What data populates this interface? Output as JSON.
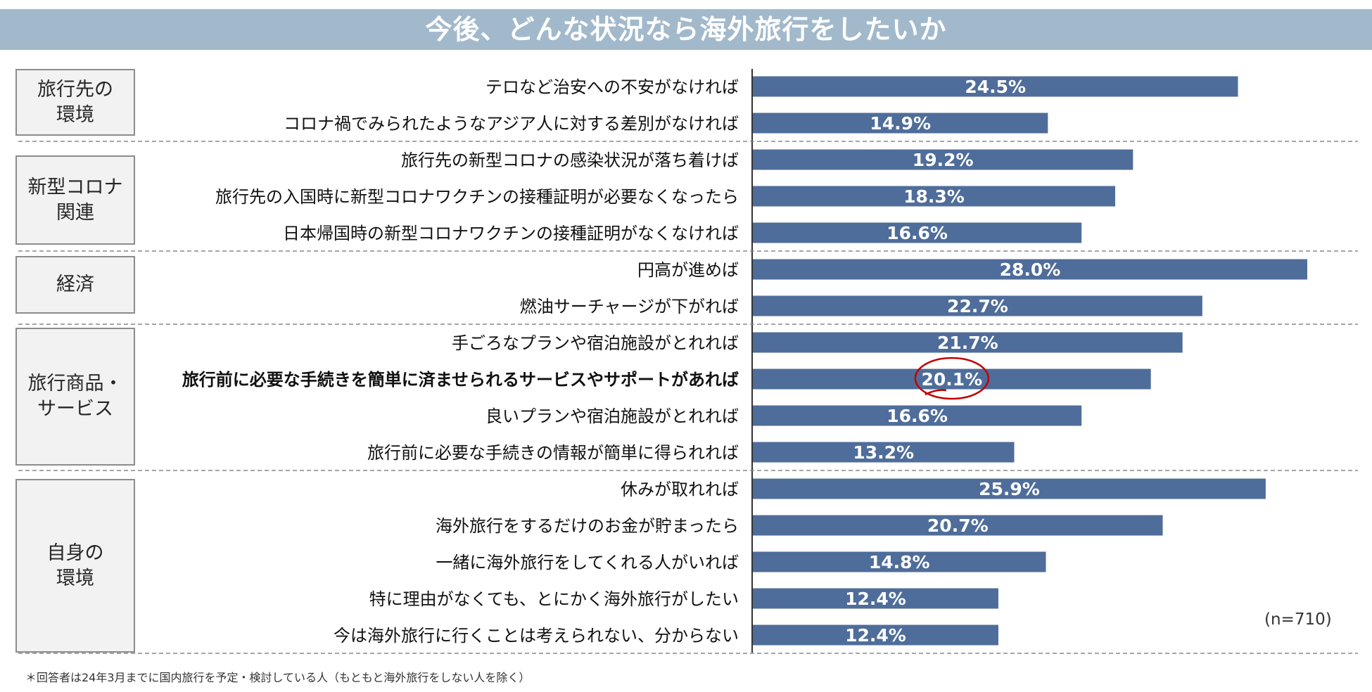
{
  "title": "今後、どんな状況なら海外旅行をしたいか",
  "sample_size": "(n=710)",
  "footnote": "＊回答者は24年3月までに国内旅行を予定・検討している人（もともと海外旅行をしない人を除く）",
  "categories": [
    {
      "label": "旅行先の\n環境",
      "rows": 2
    },
    {
      "label": "新型コロナ\n関連",
      "rows": 3
    },
    {
      "label": "経済",
      "rows": 2
    },
    {
      "label": "旅行商品・\nサービス",
      "rows": 4
    },
    {
      "label": "自身の\n環境",
      "rows": 5
    }
  ],
  "colors": {
    "bar": "#4f6d9a",
    "bar_text": "#ffffff",
    "highlight": "#c00000",
    "title_bg": "#a2b9cc"
  },
  "chart_data": {
    "type": "bar",
    "orientation": "horizontal",
    "title": "今後、どんな状況なら海外旅行をしたいか",
    "unit": "%",
    "xlim": [
      0,
      28.0
    ],
    "highlighted_index": 8,
    "categories": [
      "テロなど治安への不安がなければ",
      "コロナ禍でみられたようなアジア人に対する差別がなければ",
      "旅行先の新型コロナの感染状況が落ち着けば",
      "旅行先の入国時に新型コロナワクチンの接種証明が必要なくなったら",
      "日本帰国時の新型コロナワクチンの接種証明がなくなければ",
      "円高が進めば",
      "燃油サーチャージが下がれば",
      "手ごろなプランや宿泊施設がとれれば",
      "旅行前に必要な手続きを簡単に済ませられるサービスやサポートがあれば",
      "良いプランや宿泊施設がとれれば",
      "旅行前に必要な手続きの情報が簡単に得られれば",
      "休みが取れれば",
      "海外旅行をするだけのお金が貯まったら",
      "一緒に海外旅行をしてくれる人がいれば",
      "特に理由がなくても、とにかく海外旅行がしたい",
      "今は海外旅行に行くことは考えられない、分からない"
    ],
    "values": [
      24.5,
      14.9,
      19.2,
      18.3,
      16.6,
      28.0,
      22.7,
      21.7,
      20.1,
      16.6,
      13.2,
      25.9,
      20.7,
      14.8,
      12.4,
      12.4
    ],
    "value_labels": [
      "24.5%",
      "14.9%",
      "19.2%",
      "18.3%",
      "16.6%",
      "28.0%",
      "22.7%",
      "21.7%",
      "20.1%",
      "16.6%",
      "13.2%",
      "25.9%",
      "20.7%",
      "14.8%",
      "12.4%",
      "12.4%"
    ]
  }
}
